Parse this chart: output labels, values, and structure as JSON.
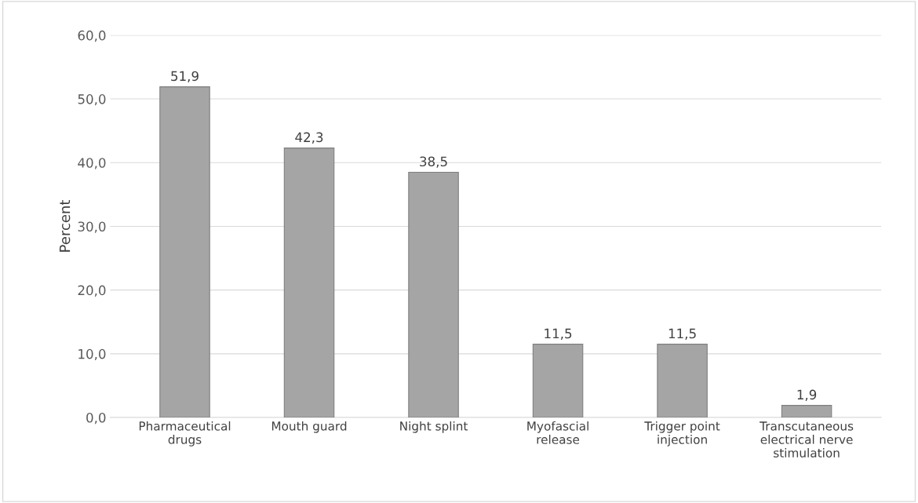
{
  "chart_data": {
    "type": "bar",
    "ylabel": "Percent",
    "categories": [
      "Pharmaceutical\ndrugs",
      "Mouth guard",
      "Night splint",
      "Myofascial\nrelease",
      "Trigger point\ninjection",
      "Transcutaneous\nelectrical nerve\nstimulation"
    ],
    "values": [
      51.9,
      42.3,
      38.5,
      11.5,
      11.5,
      1.9
    ],
    "value_labels": [
      "51,9",
      "42,3",
      "38,5",
      "11,5",
      "11,5",
      "1,9"
    ],
    "color": "#a5a5a5",
    "ylim": [
      0,
      60
    ],
    "yticks": [
      {
        "value": 0,
        "label": "0,0"
      },
      {
        "value": 10,
        "label": "10,0"
      },
      {
        "value": 20,
        "label": "20,0"
      },
      {
        "value": 30,
        "label": "30,0"
      },
      {
        "value": 40,
        "label": "40,0"
      },
      {
        "value": 50,
        "label": "50,0"
      },
      {
        "value": 60,
        "label": "60,0"
      }
    ],
    "grid": "y",
    "legend": false
  }
}
